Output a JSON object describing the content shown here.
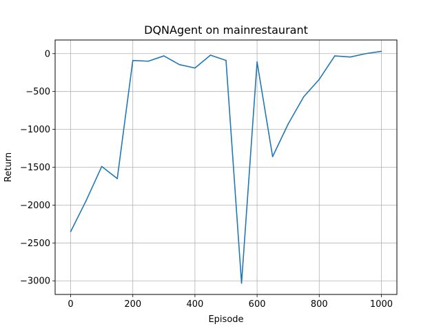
{
  "chart_data": {
    "type": "line",
    "title": "DQNAgent on mainrestaurant",
    "xlabel": "Episode",
    "ylabel": "Return",
    "xlim": [
      -50,
      1050
    ],
    "ylim": [
      -3180,
      180
    ],
    "xticks": [
      0,
      200,
      400,
      600,
      800,
      1000
    ],
    "xtick_labels": [
      "0",
      "200",
      "400",
      "600",
      "800",
      "1000"
    ],
    "yticks": [
      0,
      -500,
      -1000,
      -1500,
      -2000,
      -2500,
      -3000
    ],
    "ytick_labels": [
      "0",
      "−500",
      "−1000",
      "−1500",
      "−2000",
      "−2500",
      "−3000"
    ],
    "grid": true,
    "legend": "none",
    "series": [
      {
        "color": "#1f77b4",
        "x": [
          0,
          50,
          100,
          150,
          200,
          250,
          300,
          350,
          400,
          450,
          500,
          550,
          600,
          650,
          700,
          750,
          800,
          850,
          900,
          950,
          1000
        ],
        "y": [
          -2350,
          -1940,
          -1490,
          -1650,
          -90,
          -100,
          -30,
          -145,
          -190,
          -20,
          -90,
          -3030,
          -110,
          -1360,
          -930,
          -570,
          -340,
          -30,
          -45,
          0,
          30
        ]
      }
    ]
  }
}
